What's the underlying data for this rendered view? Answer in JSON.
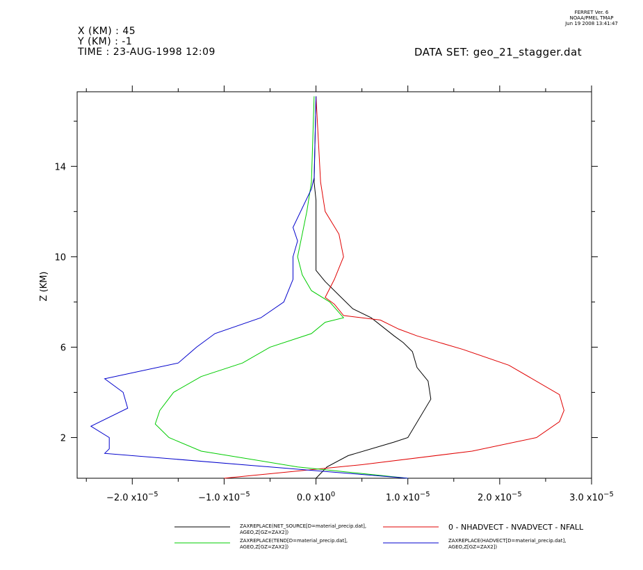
{
  "header": {
    "x_line": "X (KM) : 45",
    "y_line": "Y (KM) : -1",
    "time_line": "TIME : 23-AUG-1998 12:09",
    "dataset": "DATA SET: geo_21_stagger.dat",
    "stamp_line1": "FERRET Ver. 6",
    "stamp_line2": "NOAA/PMEL TMAP",
    "stamp_line3": "Jun 19 2008 13:41:47"
  },
  "chart_data": {
    "type": "line",
    "ylabel": "Z (KM)",
    "xlim": [
      -2.6e-05,
      3e-05
    ],
    "ylim": [
      0.2,
      17.3
    ],
    "x_ticks": [
      -2e-05,
      -1e-05,
      0.0,
      1e-05,
      2e-05,
      3e-05
    ],
    "x_tick_labels": [
      {
        "base": "−2.0 x10",
        "exp": "−5"
      },
      {
        "base": "−1.0 x10",
        "exp": "−5"
      },
      {
        "base": "0.0 x10",
        "exp": "0"
      },
      {
        "base": "1.0 x10",
        "exp": "−5"
      },
      {
        "base": "2.0 x10",
        "exp": "−5"
      },
      {
        "base": "3.0 x10",
        "exp": "−5"
      }
    ],
    "y_ticks": [
      2,
      6,
      10,
      14
    ],
    "y_tick_labels": [
      "2",
      "6",
      "10",
      "14"
    ],
    "grid": false,
    "legend_position": "bottom",
    "series": [
      {
        "name": "ZAXREPLACE(NET_SOURCE[D=material_precip.dat], AGEO,Z[GZ=ZAX2])",
        "legend_lines": [
          "ZAXREPLACE(NET_SOURCE[D=material_precip.dat],",
          "AGEO,Z[GZ=ZAX2])"
        ],
        "color": "#000000",
        "x": [
          0.0,
          1.2e-06,
          3.5e-06,
          8.5e-06,
          1e-05,
          1.25e-05,
          1.22e-05,
          1.1e-05,
          1.05e-05,
          9.5e-06,
          8.5e-06,
          6e-06,
          4e-06,
          2.5e-06,
          1e-06,
          0.0,
          0.0,
          0.0,
          0.0,
          -2e-07,
          0.0
        ],
        "y": [
          0.2,
          0.7,
          1.2,
          1.8,
          2.0,
          3.7,
          4.5,
          5.1,
          5.8,
          6.2,
          6.5,
          7.3,
          7.7,
          8.3,
          8.9,
          9.4,
          10.0,
          11.0,
          12.5,
          13.3,
          17.1
        ]
      },
      {
        "name": "0 - NHADVECT - NVADVECT - NFALL",
        "legend_lines": [
          "0 - NHADVECT - NVADVECT - NFALL"
        ],
        "color": "#e00000",
        "x": [
          -1e-05,
          5e-06,
          1.7e-05,
          2.4e-05,
          2.65e-05,
          2.7e-05,
          2.65e-05,
          2.1e-05,
          1.6e-05,
          1.1e-05,
          9e-06,
          7e-06,
          3e-06,
          2e-06,
          1e-06,
          2e-06,
          3e-06,
          2.5e-06,
          1e-06,
          5e-07,
          0.0
        ],
        "y": [
          0.2,
          0.8,
          1.4,
          2.0,
          2.7,
          3.2,
          3.9,
          5.2,
          5.9,
          6.5,
          6.8,
          7.2,
          7.4,
          7.9,
          8.2,
          9.0,
          10.0,
          11.0,
          12.0,
          13.3,
          17.1
        ]
      },
      {
        "name": "ZAXREPLACE(TEND[D=material_precip.dat], AGEO,Z[GZ=ZAX2])",
        "legend_lines": [
          "ZAXREPLACE(TEND[D=material_precip.dat],",
          "AGEO,Z[GZ=ZAX2])"
        ],
        "color": "#00cc00",
        "x": [
          1e-05,
          -2e-06,
          -1.25e-05,
          -1.6e-05,
          -1.75e-05,
          -1.7e-05,
          -1.55e-05,
          -1.25e-05,
          -8e-06,
          -5e-06,
          -5e-07,
          1e-06,
          3e-06,
          1.5e-06,
          -5e-07,
          -1.5e-06,
          -2e-06,
          -1.5e-06,
          -1e-06,
          -5e-07,
          -2e-07
        ],
        "y": [
          0.2,
          0.7,
          1.4,
          2.0,
          2.6,
          3.2,
          4.0,
          4.7,
          5.3,
          6.0,
          6.6,
          7.1,
          7.3,
          8.0,
          8.5,
          9.2,
          10.0,
          11.0,
          12.0,
          13.3,
          17.1
        ]
      },
      {
        "name": "ZAXREPLACE(HADVECT[D=material_precip.dat], AGEO,Z[GZ=ZAX2])",
        "legend_lines": [
          "ZAXREPLACE(HADVECT[D=material_precip.dat],",
          "AGEO,Z[GZ=ZAX2])"
        ],
        "color": "#0000cc",
        "x": [
          1e-05,
          -2.3e-05,
          -2.25e-05,
          -2.25e-05,
          -2.45e-05,
          -2.05e-05,
          -2.1e-05,
          -2.3e-05,
          -1.5e-05,
          -1.3e-05,
          -1.1e-05,
          -6e-06,
          -3.5e-06,
          -2.5e-06,
          -2.5e-06,
          -2.5e-06,
          -2e-06,
          -2.5e-06,
          -5e-07,
          -2e-07,
          0.0
        ],
        "y": [
          0.2,
          1.3,
          1.5,
          2.0,
          2.5,
          3.3,
          4.0,
          4.6,
          5.3,
          6.0,
          6.6,
          7.3,
          8.0,
          9.0,
          9.6,
          10.0,
          10.7,
          11.3,
          13.0,
          13.5,
          17.1
        ]
      }
    ]
  }
}
